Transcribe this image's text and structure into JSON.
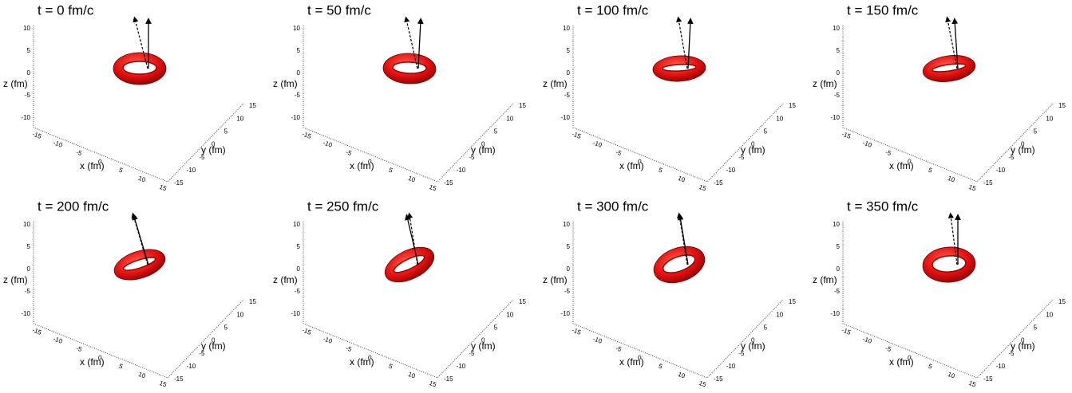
{
  "panels": [
    {
      "title": "t = 0 fm/c"
    },
    {
      "title": "t = 50 fm/c"
    },
    {
      "title": "t = 100 fm/c"
    },
    {
      "title": "t = 150 fm/c"
    },
    {
      "title": "t = 200 fm/c"
    },
    {
      "title": "t = 250 fm/c"
    },
    {
      "title": "t = 300 fm/c"
    },
    {
      "title": "t = 350 fm/c"
    }
  ],
  "axes": {
    "z_label": "z (fm)",
    "x_label": "x (fm)",
    "y_label": "y (fm)",
    "z_ticks": [
      "10",
      "5",
      "0",
      "-5",
      "-10"
    ],
    "x_ticks": [
      "-15",
      "-10",
      "-5",
      "0",
      "5",
      "10",
      "15"
    ],
    "y_ticks": [
      "-15",
      "-10",
      "-5",
      "0",
      "5",
      "10",
      "15"
    ]
  }
}
